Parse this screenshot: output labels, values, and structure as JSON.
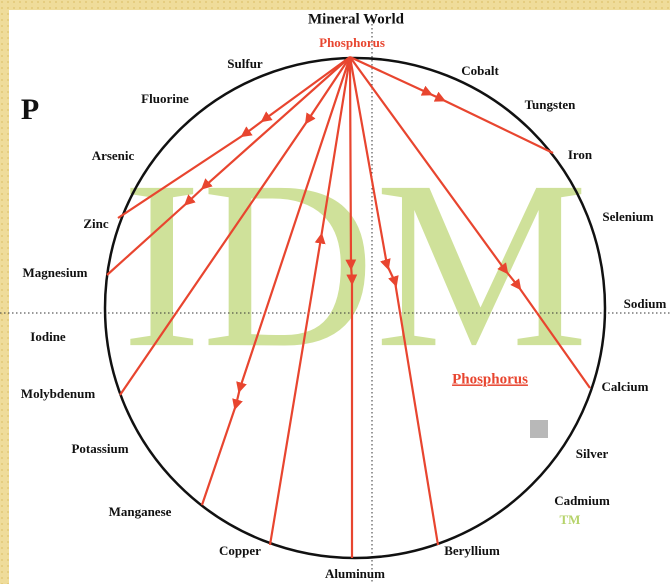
{
  "title": "Mineral World",
  "subtitle": "Phosphorus",
  "symbol": "P",
  "watermark": "IDM",
  "center_label": "Phosphorus",
  "trademark": "TM",
  "elements": [
    "Sulfur",
    "Cobalt",
    "Fluorine",
    "Tungsten",
    "Arsenic",
    "Iron",
    "Zinc",
    "Selenium",
    "Magnesium",
    "Sodium",
    "Iodine",
    "Molybdenum",
    "Calcium",
    "Potassium",
    "Silver",
    "Cadmium",
    "Manganese",
    "Copper",
    "Beryllium",
    "Aluminum"
  ]
}
